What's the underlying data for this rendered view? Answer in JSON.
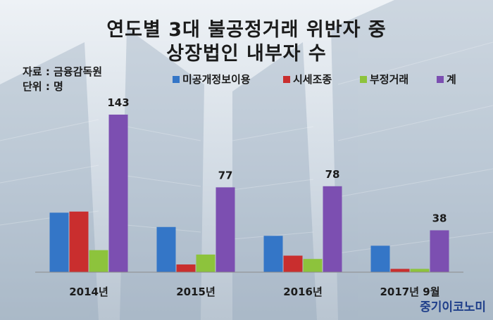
{
  "colors": {
    "bg_top": "#e4ebf2",
    "bg_bottom": "#b7c3cf",
    "series": [
      "#3476c7",
      "#c92e2e",
      "#8dc33c",
      "#7c4fb1"
    ]
  },
  "brand": "중기이코노미",
  "chart_data": {
    "type": "bar",
    "title": "연도별 3대 불공정거래 위반자 중",
    "subtitle": "상장법인 내부자 수",
    "source": "자료 : 금융감독원",
    "unit": "단위 : 명",
    "categories": [
      "2014년",
      "2015년",
      "2016년",
      "2017년 9월"
    ],
    "series": [
      {
        "name": "미공개정보이용",
        "values": [
          54,
          41,
          33,
          24
        ],
        "label_values": [
          "",
          "",
          "",
          ""
        ]
      },
      {
        "name": "시세조종",
        "values": [
          55,
          7,
          15,
          3
        ],
        "label_values": [
          "",
          "",
          "",
          ""
        ]
      },
      {
        "name": "부정거래",
        "values": [
          20,
          16,
          12,
          3
        ],
        "label_values": [
          "",
          "",
          "",
          ""
        ]
      },
      {
        "name": "계",
        "values": [
          143,
          77,
          78,
          38
        ],
        "label_values": [
          "143",
          "77",
          "78",
          "38"
        ]
      }
    ],
    "ylim": [
      0,
      150
    ],
    "grid": false,
    "legend_position": "top"
  }
}
